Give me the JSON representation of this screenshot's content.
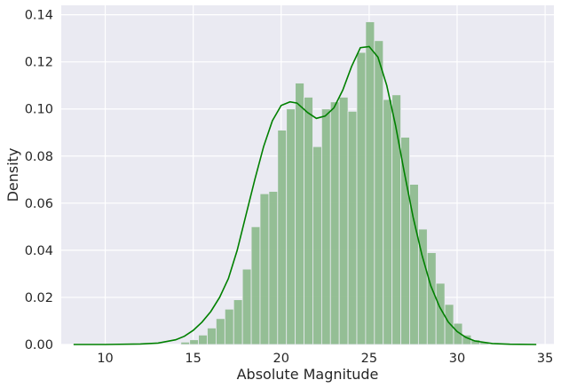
{
  "chart_data": {
    "type": "bar",
    "subtype": "histogram-with-kde",
    "title": "",
    "xlabel": "Absolute Magnitude",
    "ylabel": "Density",
    "xlim": [
      7.5,
      35.5
    ],
    "ylim": [
      0,
      0.144
    ],
    "xticks": [
      10,
      15,
      20,
      25,
      30,
      35
    ],
    "yticks": [
      0.0,
      0.02,
      0.04,
      0.06,
      0.08,
      0.1,
      0.12,
      0.14
    ],
    "ytick_labels": [
      "0.00",
      "0.02",
      "0.04",
      "0.06",
      "0.08",
      "0.10",
      "0.12",
      "0.14"
    ],
    "grid": true,
    "legend": "none",
    "colors": {
      "background": "#eaeaf2",
      "bars": "#8fbc8f",
      "kde": "#008000",
      "grid": "#ffffff"
    },
    "bins": {
      "start": 14.3,
      "width": 0.5,
      "density": [
        0.001,
        0.002,
        0.004,
        0.007,
        0.011,
        0.015,
        0.019,
        0.032,
        0.05,
        0.064,
        0.065,
        0.091,
        0.1,
        0.111,
        0.105,
        0.084,
        0.1,
        0.103,
        0.105,
        0.099,
        0.124,
        0.137,
        0.129,
        0.104,
        0.106,
        0.088,
        0.068,
        0.049,
        0.039,
        0.026,
        0.017,
        0.009,
        0.004,
        0.002,
        0.001
      ]
    },
    "kde": {
      "x": [
        8.2,
        10,
        12,
        13,
        14,
        14.5,
        15,
        15.5,
        16,
        16.5,
        17,
        17.5,
        18,
        18.5,
        19,
        19.5,
        20,
        20.5,
        20.9,
        21.5,
        22,
        22.5,
        23,
        23.5,
        24,
        24.5,
        25,
        25.5,
        26,
        26.5,
        27,
        27.5,
        28,
        28.5,
        29,
        29.5,
        30,
        30.5,
        31,
        32,
        33,
        34.5
      ],
      "y": [
        0,
        0,
        0.0002,
        0.0006,
        0.002,
        0.0035,
        0.006,
        0.0095,
        0.014,
        0.02,
        0.028,
        0.04,
        0.055,
        0.07,
        0.084,
        0.095,
        0.1015,
        0.103,
        0.1025,
        0.0985,
        0.096,
        0.097,
        0.1005,
        0.108,
        0.118,
        0.126,
        0.1265,
        0.122,
        0.11,
        0.093,
        0.073,
        0.054,
        0.038,
        0.025,
        0.016,
        0.0095,
        0.0055,
        0.003,
        0.0015,
        0.0004,
        0.0001,
        0
      ]
    }
  }
}
